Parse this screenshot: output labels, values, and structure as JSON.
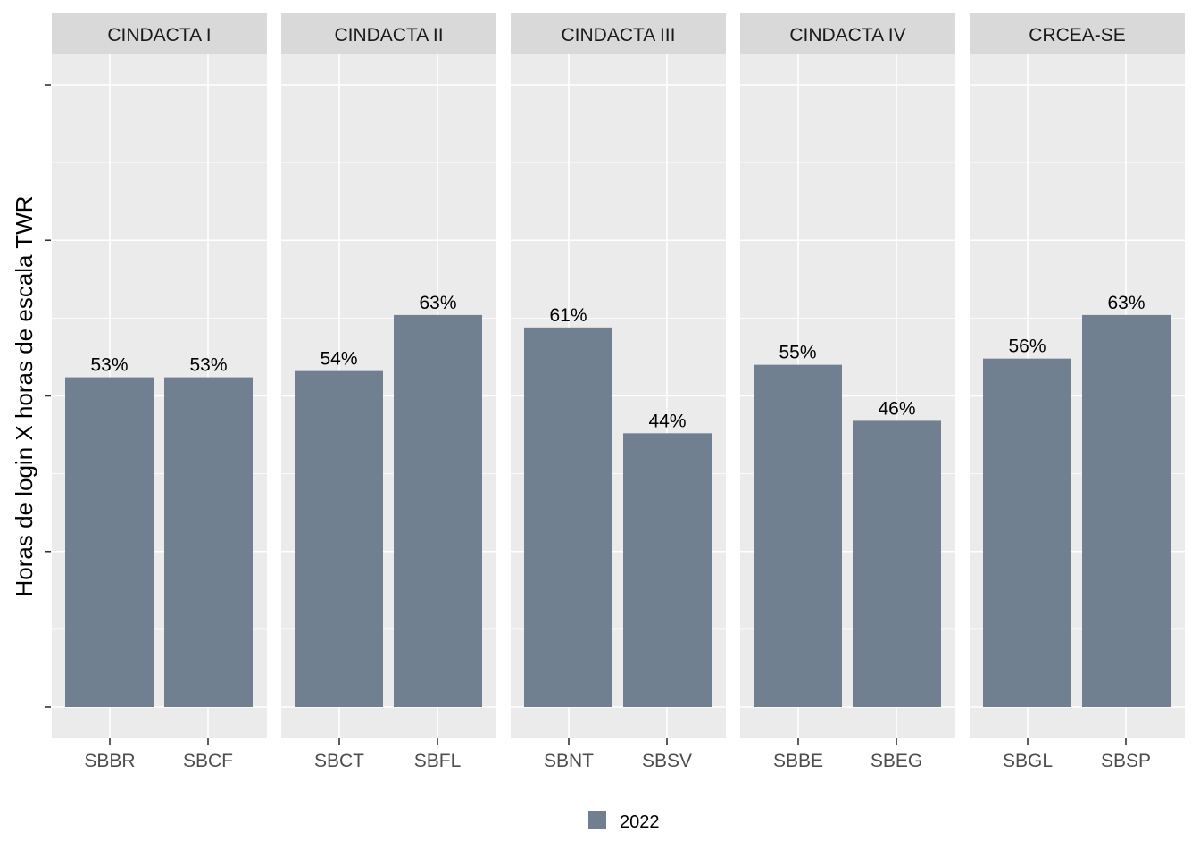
{
  "chart_data": {
    "type": "bar",
    "ylabel": "Horas de login X horas de escala TWR",
    "ylim": [
      0,
      1.05
    ],
    "y_major_ticks": [
      0,
      0.25,
      0.5,
      0.75,
      1.0
    ],
    "y_tick_labels_shown": false,
    "grid": true,
    "legend_placement": "bottom",
    "facets": [
      {
        "name": "CINDACTA I",
        "categories": [
          "SBBR",
          "SBCF"
        ],
        "values": [
          0.53,
          0.53
        ],
        "labels": [
          "53%",
          "53%"
        ]
      },
      {
        "name": "CINDACTA II",
        "categories": [
          "SBCT",
          "SBFL"
        ],
        "values": [
          0.54,
          0.63
        ],
        "labels": [
          "54%",
          "63%"
        ]
      },
      {
        "name": "CINDACTA III",
        "categories": [
          "SBNT",
          "SBSV"
        ],
        "values": [
          0.61,
          0.44
        ],
        "labels": [
          "61%",
          "44%"
        ]
      },
      {
        "name": "CINDACTA IV",
        "categories": [
          "SBBE",
          "SBEG"
        ],
        "values": [
          0.55,
          0.46
        ],
        "labels": [
          "55%",
          "46%"
        ]
      },
      {
        "name": "CRCEA-SE",
        "categories": [
          "SBGL",
          "SBSP"
        ],
        "values": [
          0.56,
          0.63
        ],
        "labels": [
          "56%",
          "63%"
        ]
      }
    ],
    "series": [
      {
        "name": "2022"
      }
    ]
  },
  "colors": {
    "bar": "#708090",
    "panel_bg": "#ebebeb",
    "strip_bg": "#d9d9d9",
    "grid": "#ffffff",
    "tick": "#333333"
  }
}
